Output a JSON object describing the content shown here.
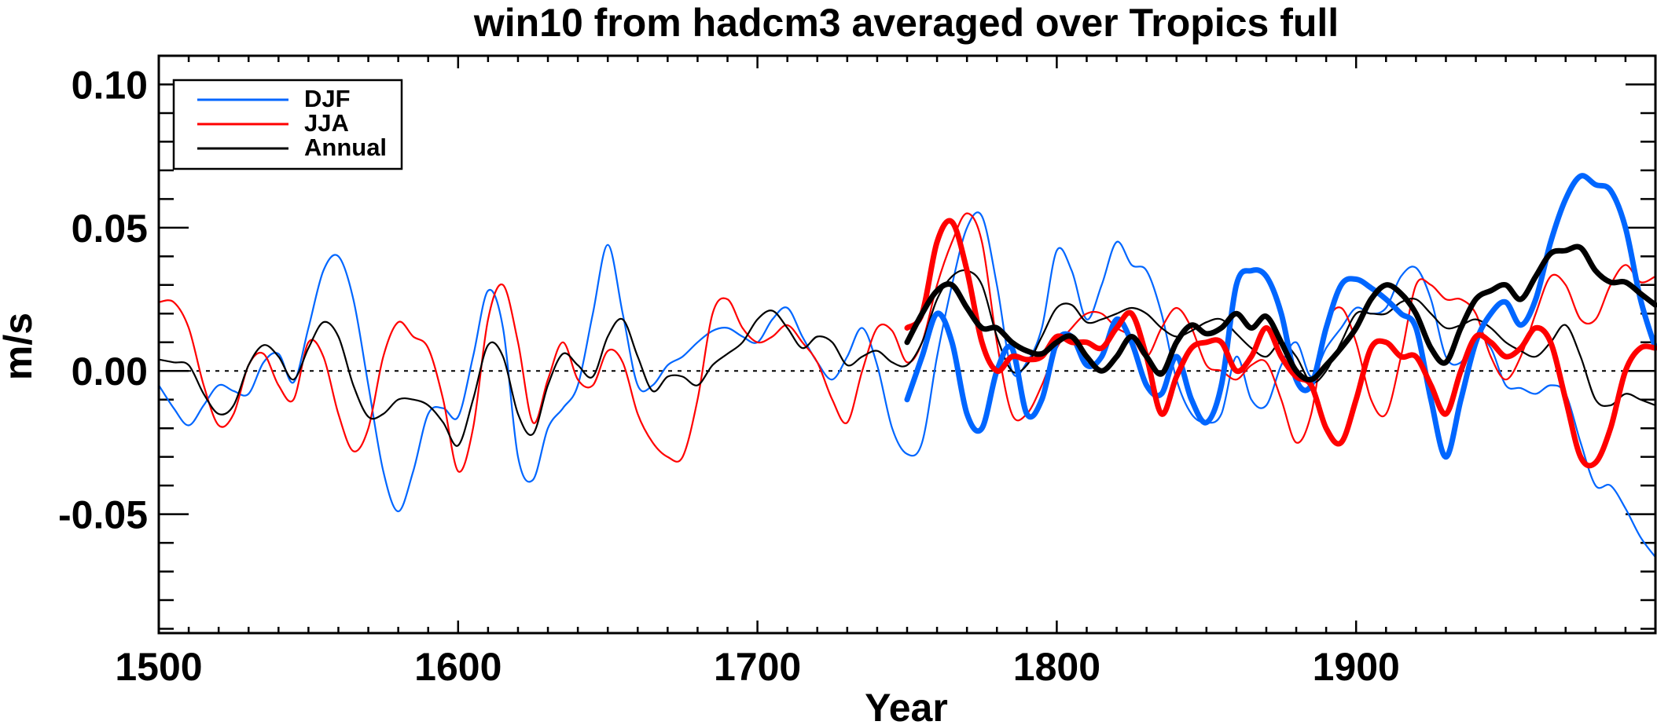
{
  "chart_data": {
    "type": "line",
    "title": "win10 from hadcm3 averaged over Tropics full",
    "xlabel": "Year",
    "ylabel": "m/s",
    "xlim": [
      1500,
      2000
    ],
    "ylim": [
      -0.0915,
      0.11
    ],
    "x_ticks": [
      1500,
      1600,
      1700,
      1800,
      1900
    ],
    "x_tick_labels": [
      "1500",
      "1600",
      "1700",
      "1800",
      "1900"
    ],
    "x_minor_step": 10,
    "y_ticks": [
      -0.05,
      0.0,
      0.05,
      0.1
    ],
    "y_tick_labels": [
      "-0.05",
      "0.00",
      "0.05",
      "0.10"
    ],
    "y_minor_step": 0.01,
    "reference_line": 0.0,
    "legend": {
      "placement": "top-left",
      "entries": [
        {
          "label": "DJF",
          "color": "#0066ff"
        },
        {
          "label": "JJA",
          "color": "#ff0000"
        },
        {
          "label": "Annual",
          "color": "#000000"
        }
      ]
    },
    "series": [
      {
        "name": "DJF",
        "color": "#0066ff",
        "weight": "thin",
        "start_year": 1500,
        "step": 5,
        "values": [
          -0.005,
          -0.013,
          -0.019,
          -0.012,
          -0.005,
          -0.007,
          -0.008,
          0.003,
          0.006,
          -0.004,
          0.015,
          0.035,
          0.04,
          0.025,
          -0.005,
          -0.035,
          -0.049,
          -0.035,
          -0.015,
          -0.013,
          -0.016,
          0.005,
          0.028,
          0.015,
          -0.03,
          -0.038,
          -0.02,
          -0.013,
          -0.005,
          0.02,
          0.044,
          0.02,
          -0.005,
          -0.005,
          0.002,
          0.005,
          0.01,
          0.014,
          0.015,
          0.012,
          0.01,
          0.018,
          0.022,
          0.012,
          0.003,
          -0.003,
          0.005,
          0.015,
          0.002,
          -0.02,
          -0.029,
          -0.025,
          0.005,
          0.03,
          0.05,
          0.054,
          0.03,
          0.0,
          0.003,
          0.015,
          0.042,
          0.035,
          0.018,
          0.03,
          0.045,
          0.037,
          0.035,
          0.02,
          -0.003,
          -0.015,
          -0.018,
          -0.015,
          0.005,
          -0.01,
          -0.012,
          0.002,
          0.01,
          -0.002,
          0.008,
          0.015,
          0.022,
          0.02,
          0.022,
          0.033,
          0.036,
          0.025,
          0.005,
          0.003,
          0.012,
          0.008,
          -0.005,
          -0.006,
          -0.008,
          -0.005,
          -0.008,
          -0.025,
          -0.04,
          -0.04,
          -0.048,
          -0.058,
          -0.065
        ]
      },
      {
        "name": "JJA",
        "color": "#ff0000",
        "weight": "thin",
        "start_year": 1500,
        "step": 5,
        "values": [
          0.024,
          0.024,
          0.015,
          -0.005,
          -0.019,
          -0.015,
          0.002,
          0.006,
          -0.005,
          -0.01,
          0.01,
          0.005,
          -0.015,
          -0.028,
          -0.02,
          0.005,
          0.017,
          0.012,
          0.008,
          -0.01,
          -0.035,
          -0.02,
          0.018,
          0.03,
          0.01,
          -0.018,
          -0.003,
          0.01,
          -0.003,
          -0.005,
          0.007,
          0.003,
          -0.015,
          -0.025,
          -0.03,
          -0.03,
          -0.01,
          0.02,
          0.025,
          0.015,
          0.01,
          0.012,
          0.016,
          0.01,
          0.003,
          -0.01,
          -0.018,
          0.0,
          0.015,
          0.014,
          0.003,
          0.01,
          0.03,
          0.045,
          0.055,
          0.045,
          0.01,
          -0.015,
          -0.015,
          -0.005,
          0.008,
          0.015,
          0.02,
          0.02,
          0.015,
          0.012,
          0.005,
          0.015,
          0.022,
          0.015,
          0.002,
          0.0,
          -0.003,
          0.002,
          0.003,
          -0.01,
          -0.025,
          -0.015,
          0.015,
          0.022,
          0.01,
          -0.01,
          -0.015,
          0.005,
          0.03,
          0.03,
          0.025,
          0.025,
          0.02,
          0.005,
          -0.003,
          0.005,
          0.02,
          0.033,
          0.03,
          0.018,
          0.018,
          0.03,
          0.037,
          0.031,
          0.033
        ]
      },
      {
        "name": "Annual",
        "color": "#000000",
        "weight": "thin",
        "start_year": 1500,
        "step": 5,
        "values": [
          0.004,
          0.003,
          0.002,
          -0.008,
          -0.015,
          -0.012,
          0.002,
          0.009,
          0.005,
          -0.003,
          0.008,
          0.017,
          0.012,
          -0.005,
          -0.016,
          -0.015,
          -0.01,
          -0.01,
          -0.012,
          -0.018,
          -0.026,
          -0.01,
          0.009,
          0.005,
          -0.015,
          -0.022,
          -0.005,
          0.006,
          0.002,
          -0.002,
          0.012,
          0.018,
          0.005,
          -0.007,
          -0.002,
          -0.002,
          -0.005,
          0.002,
          0.006,
          0.01,
          0.018,
          0.021,
          0.015,
          0.008,
          0.012,
          0.01,
          0.002,
          0.005,
          0.007,
          0.003,
          0.002,
          0.01,
          0.025,
          0.033,
          0.035,
          0.03,
          0.012,
          0.0,
          0.002,
          0.012,
          0.022,
          0.023,
          0.017,
          0.018,
          0.02,
          0.022,
          0.02,
          0.015,
          0.012,
          0.014,
          0.017,
          0.018,
          0.013,
          0.008,
          0.005,
          0.01,
          0.005,
          -0.004,
          0.0,
          0.01,
          0.02,
          0.02,
          0.02,
          0.024,
          0.025,
          0.02,
          0.015,
          0.016,
          0.018,
          0.015,
          0.01,
          0.007,
          0.005,
          0.01,
          0.016,
          0.005,
          -0.01,
          -0.012,
          -0.008,
          -0.01,
          -0.012
        ]
      },
      {
        "name": "DJF",
        "color": "#0066ff",
        "weight": "thick",
        "start_year": 1750,
        "step": 5,
        "values": [
          -0.01,
          0.005,
          0.02,
          0.01,
          -0.015,
          -0.02,
          0.0,
          0.008,
          -0.015,
          -0.01,
          0.01,
          0.012,
          0.002,
          0.005,
          0.018,
          0.01,
          -0.005,
          -0.008,
          0.005,
          -0.01,
          -0.018,
          -0.005,
          0.03,
          0.035,
          0.033,
          0.02,
          -0.003,
          -0.005,
          0.015,
          0.03,
          0.032,
          0.029,
          0.025,
          0.02,
          0.015,
          -0.01,
          -0.03,
          -0.01,
          0.01,
          0.02,
          0.024,
          0.016,
          0.025,
          0.045,
          0.06,
          0.068,
          0.065,
          0.063,
          0.05,
          0.025,
          0.008
        ]
      },
      {
        "name": "JJA",
        "color": "#ff0000",
        "weight": "thick",
        "start_year": 1750,
        "step": 5,
        "values": [
          0.015,
          0.02,
          0.045,
          0.052,
          0.035,
          0.01,
          0.0,
          0.005,
          0.004,
          0.005,
          0.012,
          0.01,
          0.01,
          0.008,
          0.015,
          0.02,
          0.005,
          -0.015,
          -0.002,
          0.008,
          0.01,
          0.01,
          0.0,
          0.005,
          0.015,
          0.005,
          -0.002,
          -0.005,
          -0.02,
          -0.025,
          -0.01,
          0.008,
          0.01,
          0.005,
          0.005,
          -0.005,
          -0.015,
          0.0,
          0.012,
          0.01,
          0.005,
          0.008,
          0.015,
          0.01,
          -0.01,
          -0.03,
          -0.032,
          -0.02,
          0.0,
          0.008,
          0.008
        ]
      },
      {
        "name": "Annual",
        "color": "#000000",
        "weight": "thick",
        "start_year": 1750,
        "step": 5,
        "values": [
          0.01,
          0.02,
          0.028,
          0.03,
          0.022,
          0.015,
          0.015,
          0.01,
          0.007,
          0.006,
          0.01,
          0.012,
          0.005,
          0.0,
          0.005,
          0.012,
          0.005,
          -0.001,
          0.01,
          0.016,
          0.013,
          0.015,
          0.02,
          0.015,
          0.019,
          0.01,
          0.0,
          -0.003,
          0.002,
          0.008,
          0.015,
          0.025,
          0.03,
          0.027,
          0.02,
          0.008,
          0.003,
          0.015,
          0.025,
          0.028,
          0.03,
          0.025,
          0.033,
          0.041,
          0.042,
          0.043,
          0.035,
          0.031,
          0.031,
          0.027,
          0.023
        ]
      }
    ]
  }
}
